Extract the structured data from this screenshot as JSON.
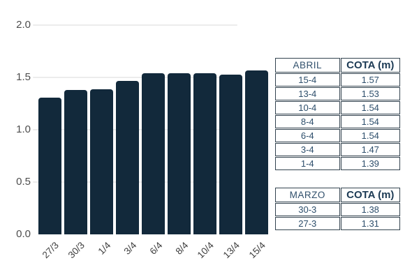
{
  "chart_data": {
    "type": "bar",
    "categories": [
      "27/3",
      "30/3",
      "1/4",
      "3/4",
      "6/4",
      "8/4",
      "10/4",
      "13/4",
      "15/4"
    ],
    "values": [
      1.31,
      1.38,
      1.39,
      1.47,
      1.54,
      1.54,
      1.54,
      1.53,
      1.57
    ],
    "title": "",
    "xlabel": "",
    "ylabel": "",
    "ylim": [
      0.0,
      2.0
    ],
    "yticks": [
      0.0,
      0.5,
      1.0,
      1.5,
      2.0
    ],
    "ytick_labels": [
      "0.0",
      "0.5",
      "1.0",
      "1.5",
      "2.0"
    ],
    "grid": true,
    "legend": "none",
    "bar_color": "#12293b"
  },
  "tables": [
    {
      "name": "abril",
      "headers": [
        "ABRIL",
        "COTA (m)"
      ],
      "rows": [
        [
          "15-4",
          "1.57"
        ],
        [
          "13-4",
          "1.53"
        ],
        [
          "10-4",
          "1.54"
        ],
        [
          "8-4",
          "1.54"
        ],
        [
          "6-4",
          "1.54"
        ],
        [
          "3-4",
          "1.47"
        ],
        [
          "1-4",
          "1.39"
        ]
      ]
    },
    {
      "name": "marzo",
      "headers": [
        "MARZO",
        "COTA (m)"
      ],
      "rows": [
        [
          "30-3",
          "1.38"
        ],
        [
          "27-3",
          "1.31"
        ]
      ]
    }
  ],
  "colors": {
    "bar": "#12293b",
    "table_border": "#33434f",
    "table_text": "#2d4e6b",
    "axis_text": "#4d4d4d",
    "gridline": "#ececec"
  }
}
